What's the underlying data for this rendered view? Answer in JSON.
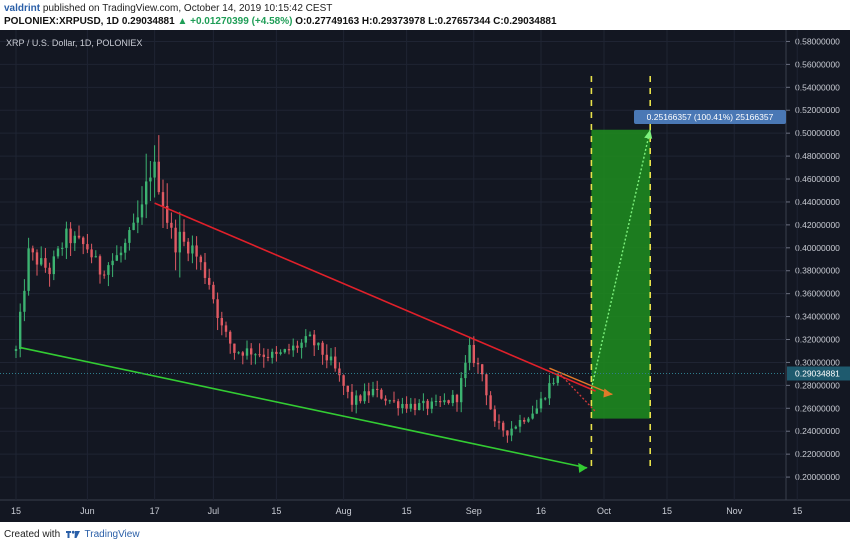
{
  "header": {
    "author": "valdrint",
    "published_text": "published on TradingView.com, October 14, 2019 10:15:42 CEST",
    "symbol": "POLONIEX:XRPUSD, 1D",
    "last": "0.29034881",
    "change": "▲ +0.01270399 (+4.58%)",
    "ohlc": "O:0.27749163 H:0.29373978 L:0.27657344 C:0.29034881"
  },
  "footer": {
    "created_with": "Created with",
    "brand": "TradingView"
  },
  "chart_data": {
    "type": "candlestick",
    "title": "XRP / U.S. Dollar, 1D, POLONIEX",
    "x_tick_labels": [
      "15",
      "Jun",
      "17",
      "Jul",
      "15",
      "Aug",
      "15",
      "Sep",
      "16",
      "Oct",
      "15",
      "Nov",
      "15"
    ],
    "y_range": [
      0.18,
      0.59
    ],
    "y_ticks": [
      "0.58000000",
      "0.56000000",
      "0.54000000",
      "0.52000000",
      "0.50000000",
      "0.48000000",
      "0.46000000",
      "0.44000000",
      "0.42000000",
      "0.40000000",
      "0.38000000",
      "0.36000000",
      "0.34000000",
      "0.32000000",
      "0.30000000",
      "0.28000000",
      "0.26000000",
      "0.24000000",
      "0.22000000",
      "0.20000000"
    ],
    "last_price": 0.29034881,
    "last_price_label": "0.29034881",
    "measure_label": "0.25166357 (100.41%) 25166357",
    "colors": {
      "background": "#131722",
      "grid": "#1f2433",
      "up": "#3cb371",
      "down": "#e05a63",
      "resistance": "#e0202a",
      "support": "#33cc33",
      "projection_zone": "#1e8e1e",
      "yellow_lines": "#e8e24a",
      "last_price_badge": "#1e5a6e",
      "measure_badge": "#4a78b5"
    },
    "annotations": {
      "resistance_line": {
        "from": {
          "day": 33,
          "price": 0.439
        },
        "to": {
          "day": 138,
          "price": 0.275
        }
      },
      "support_line": {
        "from": {
          "day": 1,
          "price": 0.313
        },
        "to": {
          "day": 136,
          "price": 0.208
        }
      },
      "projection_box": {
        "from_day": 137,
        "to_day": 151,
        "low": 0.251,
        "high": 0.503
      },
      "yellow_dashed_days": [
        137,
        151
      ],
      "orange_arrow": {
        "from": {
          "day": 127,
          "price": 0.295
        },
        "to": {
          "day": 142,
          "price": 0.272
        }
      },
      "projection_arrow": {
        "from": {
          "day": 137,
          "price": 0.277
        },
        "to": {
          "day": 151,
          "price": 0.503
        }
      }
    },
    "anchors": [
      {
        "day": 0,
        "price": 0.31
      },
      {
        "day": 3,
        "price": 0.395
      },
      {
        "day": 8,
        "price": 0.38
      },
      {
        "day": 12,
        "price": 0.41
      },
      {
        "day": 17,
        "price": 0.4
      },
      {
        "day": 20,
        "price": 0.38
      },
      {
        "day": 25,
        "price": 0.395
      },
      {
        "day": 30,
        "price": 0.43
      },
      {
        "day": 32,
        "price": 0.47
      },
      {
        "day": 34,
        "price": 0.46
      },
      {
        "day": 37,
        "price": 0.41
      },
      {
        "day": 42,
        "price": 0.4
      },
      {
        "day": 46,
        "price": 0.37
      },
      {
        "day": 49,
        "price": 0.33
      },
      {
        "day": 52,
        "price": 0.31
      },
      {
        "day": 56,
        "price": 0.31
      },
      {
        "day": 62,
        "price": 0.305
      },
      {
        "day": 70,
        "price": 0.32
      },
      {
        "day": 75,
        "price": 0.3
      },
      {
        "day": 80,
        "price": 0.265
      },
      {
        "day": 85,
        "price": 0.275
      },
      {
        "day": 90,
        "price": 0.265
      },
      {
        "day": 95,
        "price": 0.262
      },
      {
        "day": 100,
        "price": 0.262
      },
      {
        "day": 105,
        "price": 0.27
      },
      {
        "day": 108,
        "price": 0.31
      },
      {
        "day": 111,
        "price": 0.29
      },
      {
        "day": 114,
        "price": 0.245
      },
      {
        "day": 117,
        "price": 0.24
      },
      {
        "day": 121,
        "price": 0.252
      },
      {
        "day": 124,
        "price": 0.26
      },
      {
        "day": 127,
        "price": 0.28
      },
      {
        "day": 129,
        "price": 0.29
      }
    ]
  }
}
